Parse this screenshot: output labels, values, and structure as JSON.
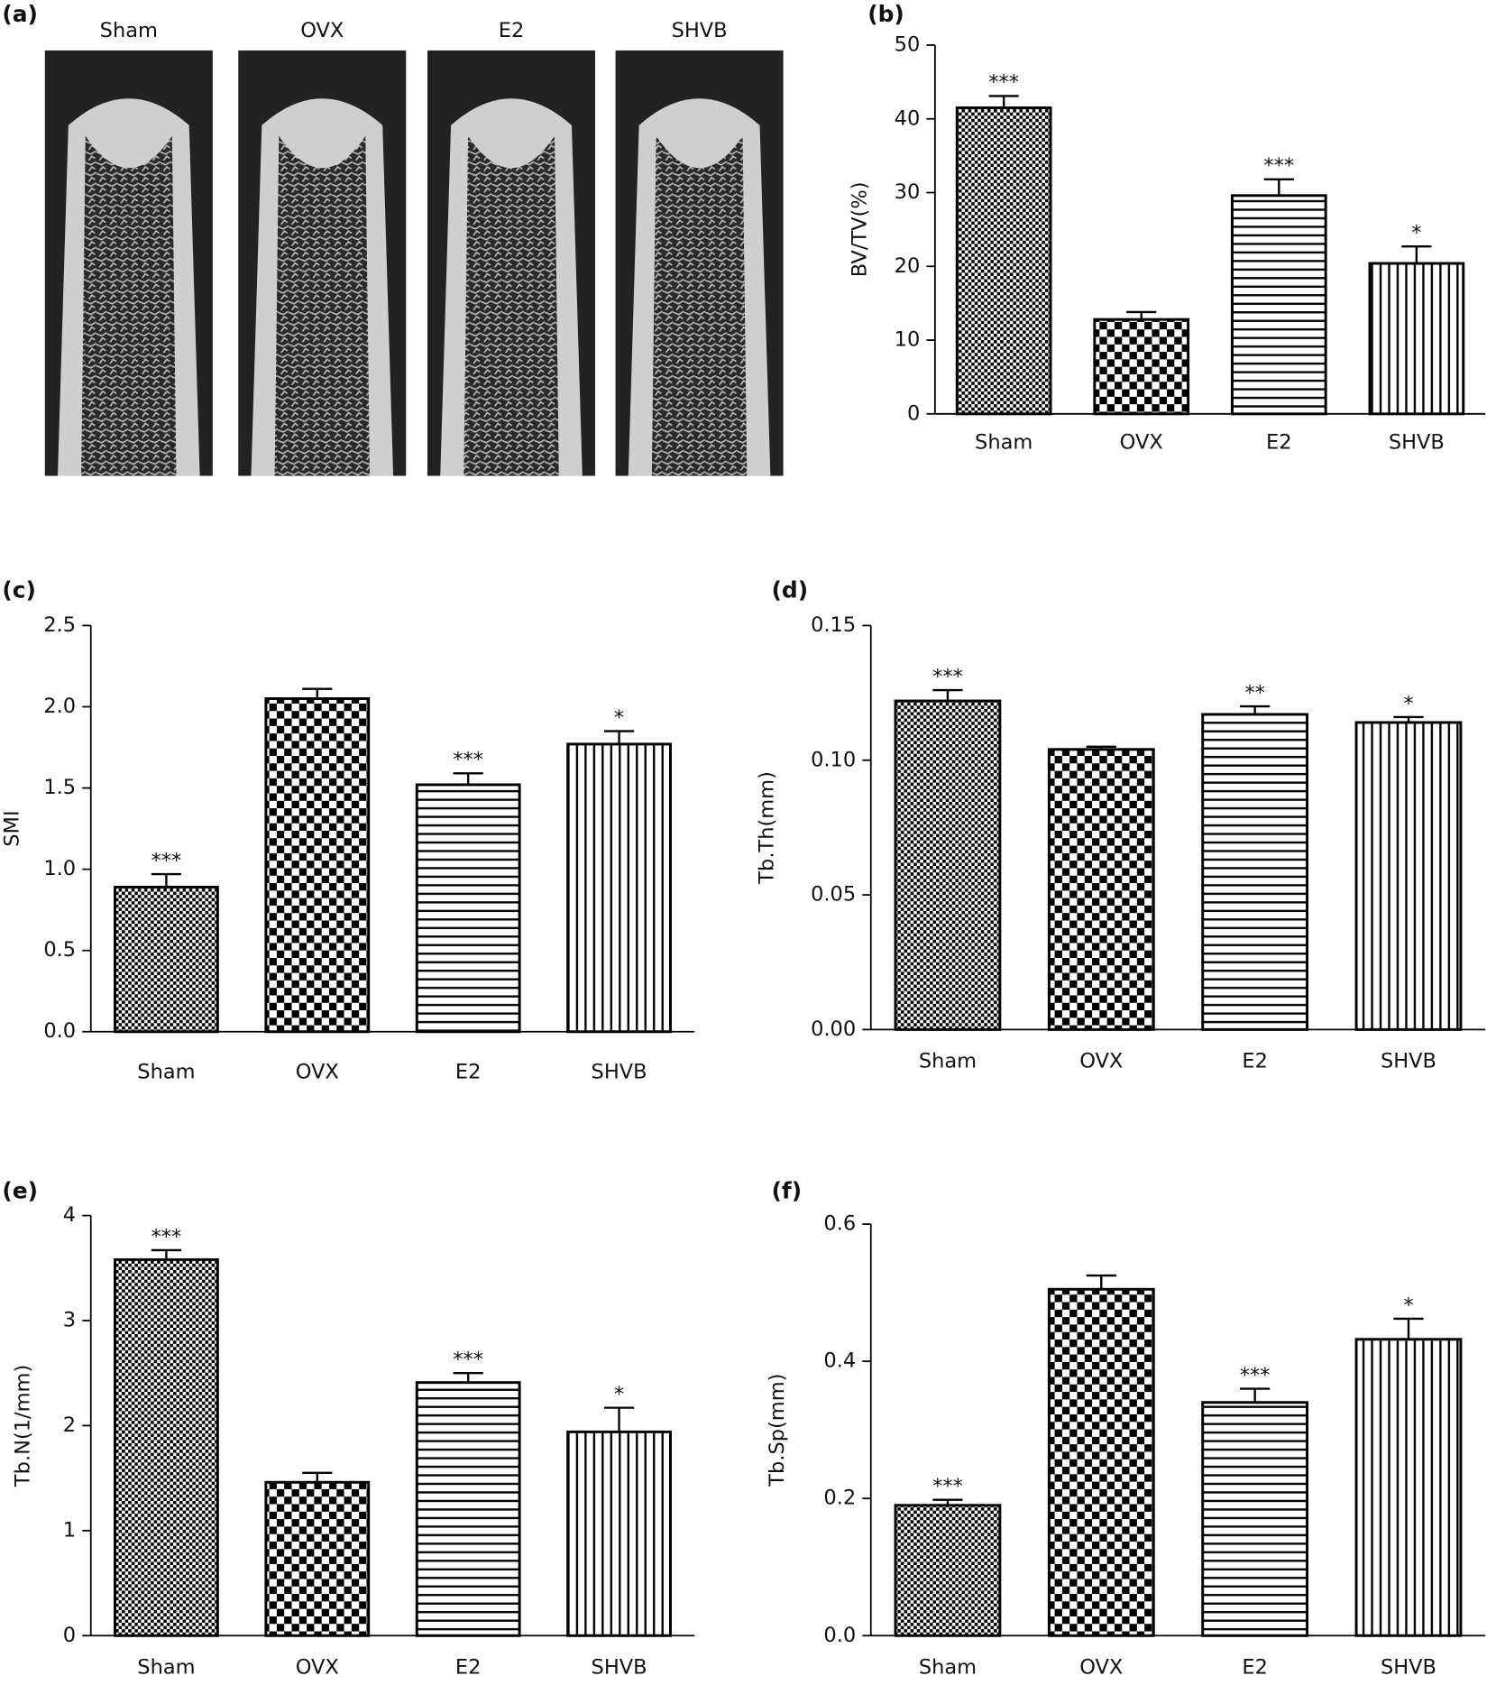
{
  "chart_data": [
    {
      "type": "image",
      "panel": "(a)",
      "categories": [
        "Sham",
        "OVX",
        "E2",
        "SHVB"
      ]
    },
    {
      "type": "bar",
      "panel": "(b)",
      "ylabel": "BV/TV(%)",
      "categories": [
        "Sham",
        "OVX",
        "E2",
        "SHVB"
      ],
      "values": [
        41.5,
        12.8,
        29.6,
        20.4
      ],
      "errors": [
        1.6,
        1.0,
        2.2,
        2.3
      ],
      "annotations": [
        "***",
        null,
        "***",
        "*"
      ],
      "ylim": [
        0,
        50
      ],
      "yticks": [
        0,
        10,
        20,
        30,
        40,
        50
      ]
    },
    {
      "type": "bar",
      "panel": "(c)",
      "ylabel": "SMI",
      "categories": [
        "Sham",
        "OVX",
        "E2",
        "SHVB"
      ],
      "values": [
        0.89,
        2.05,
        1.52,
        1.77
      ],
      "errors": [
        0.08,
        0.06,
        0.07,
        0.08
      ],
      "annotations": [
        "***",
        null,
        "***",
        "*"
      ],
      "ylim": [
        0,
        2.5
      ],
      "yticks": [
        {
          "value": 0,
          "label": "0.0"
        },
        0.5,
        {
          "value": 1,
          "label": "1.0"
        },
        1.5,
        {
          "value": 2,
          "label": "2.0"
        },
        2.5
      ]
    },
    {
      "type": "bar",
      "panel": "(d)",
      "ylabel": "Tb.Th(mm)",
      "categories": [
        "Sham",
        "OVX",
        "E2",
        "SHVB"
      ],
      "values": [
        0.122,
        0.104,
        0.117,
        0.114
      ],
      "errors": [
        0.004,
        0.001,
        0.003,
        0.002
      ],
      "annotations": [
        "***",
        null,
        "**",
        "*"
      ],
      "ylim": [
        0,
        0.15
      ],
      "yticks": [
        {
          "value": 0,
          "label": "0.00"
        },
        0.05,
        {
          "value": 0.1,
          "label": "0.10"
        },
        0.15
      ]
    },
    {
      "type": "bar",
      "panel": "(e)",
      "ylabel": "Tb.N(1/mm)",
      "categories": [
        "Sham",
        "OVX",
        "E2",
        "SHVB"
      ],
      "values": [
        3.58,
        1.46,
        2.41,
        1.94
      ],
      "errors": [
        0.09,
        0.09,
        0.09,
        0.23
      ],
      "annotations": [
        "***",
        null,
        "***",
        "*"
      ],
      "ylim": [
        0,
        4
      ],
      "yticks": [
        0,
        1,
        2,
        3,
        4
      ]
    },
    {
      "type": "bar",
      "panel": "(f)",
      "ylabel": "Tb.Sp(mm)",
      "categories": [
        "Sham",
        "OVX",
        "E2",
        "SHVB"
      ],
      "values": [
        0.19,
        0.505,
        0.34,
        0.432
      ],
      "errors": [
        0.008,
        0.02,
        0.02,
        0.03
      ],
      "annotations": [
        "***",
        null,
        "***",
        "*"
      ],
      "ylim": [
        0,
        0.6
      ],
      "yticks": [
        {
          "value": 0,
          "label": "0.0"
        },
        0.2,
        0.4,
        {
          "value": 0.6,
          "label": "0.6"
        }
      ]
    }
  ]
}
